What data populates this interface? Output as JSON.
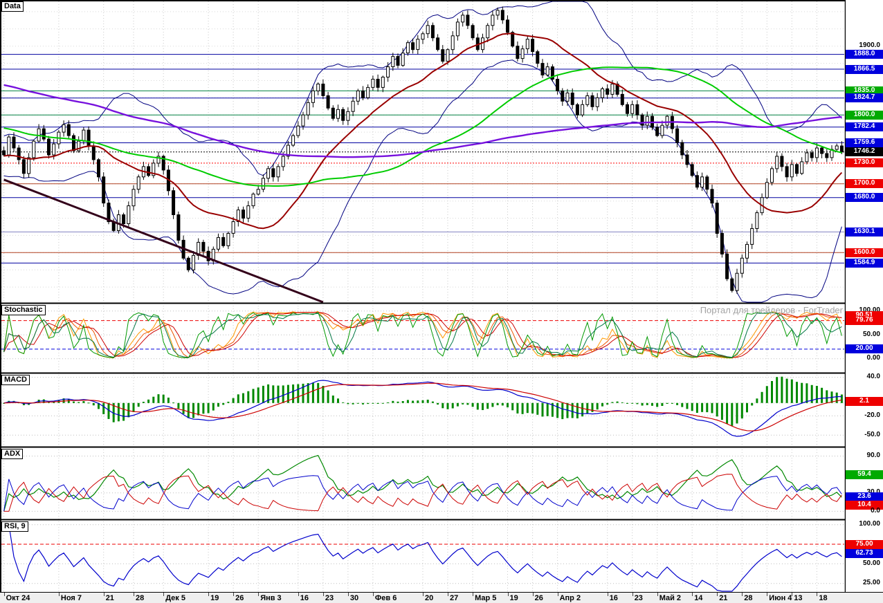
{
  "panels": {
    "main": {
      "label": "Data"
    },
    "stochastic": {
      "label": "Stochastic"
    },
    "macd": {
      "label": "MACD"
    },
    "adx": {
      "label": "ADX"
    },
    "rsi": {
      "label": "RSI, 9"
    }
  },
  "watermark": "Портал для трейдеров - ForTrader",
  "colors": {
    "badge_blue": "#0000dd",
    "badge_red": "#ee0000",
    "badge_green": "#00aa00",
    "badge_black": "#000000",
    "ma_fast": "#990000",
    "ma_mid": "#00cc00",
    "ma_slow": "#7711dd",
    "bollinger": "#000080",
    "trendline": "#33001a",
    "grid": "#c9c9c9"
  },
  "chart_data": {
    "type": "candlestick",
    "x_tick_labels": [
      {
        "label": "Окт 24",
        "index": 0
      },
      {
        "label": "Ноя 7",
        "index": 11
      },
      {
        "label": "21",
        "index": 20
      },
      {
        "label": "28",
        "index": 26
      },
      {
        "label": "Дек 5",
        "index": 32
      },
      {
        "label": "19",
        "index": 41
      },
      {
        "label": "26",
        "index": 46
      },
      {
        "label": "Янв 3",
        "index": 51
      },
      {
        "label": "16",
        "index": 59
      },
      {
        "label": "23",
        "index": 64
      },
      {
        "label": "30",
        "index": 69
      },
      {
        "label": "Фев 6",
        "index": 74
      },
      {
        "label": "20",
        "index": 84
      },
      {
        "label": "27",
        "index": 89
      },
      {
        "label": "Мар 5",
        "index": 94
      },
      {
        "label": "19",
        "index": 101
      },
      {
        "label": "26",
        "index": 106
      },
      {
        "label": "Апр 2",
        "index": 111
      },
      {
        "label": "16",
        "index": 121
      },
      {
        "label": "23",
        "index": 126
      },
      {
        "label": "Май 2",
        "index": 131
      },
      {
        "label": "14",
        "index": 138
      },
      {
        "label": "21",
        "index": 143
      },
      {
        "label": "28",
        "index": 148
      },
      {
        "label": "Июн 4",
        "index": 153
      },
      {
        "label": "13",
        "index": 158
      },
      {
        "label": "18",
        "index": 163
      }
    ],
    "close": [
      1742,
      1768,
      1752,
      1735,
      1715,
      1738,
      1762,
      1780,
      1765,
      1742,
      1758,
      1775,
      1786,
      1770,
      1748,
      1762,
      1778,
      1755,
      1735,
      1710,
      1672,
      1645,
      1632,
      1655,
      1642,
      1668,
      1692,
      1710,
      1725,
      1712,
      1730,
      1740,
      1720,
      1690,
      1655,
      1618,
      1592,
      1575,
      1596,
      1615,
      1602,
      1588,
      1605,
      1622,
      1610,
      1628,
      1645,
      1662,
      1650,
      1668,
      1685,
      1692,
      1708,
      1722,
      1710,
      1725,
      1740,
      1756,
      1770,
      1784,
      1800,
      1818,
      1835,
      1845,
      1828,
      1810,
      1795,
      1808,
      1792,
      1805,
      1820,
      1835,
      1825,
      1840,
      1852,
      1840,
      1855,
      1870,
      1885,
      1872,
      1890,
      1905,
      1895,
      1910,
      1918,
      1930,
      1912,
      1895,
      1878,
      1895,
      1915,
      1935,
      1945,
      1930,
      1912,
      1895,
      1912,
      1930,
      1945,
      1952,
      1938,
      1920,
      1900,
      1882,
      1896,
      1910,
      1892,
      1875,
      1858,
      1870,
      1852,
      1835,
      1820,
      1832,
      1815,
      1800,
      1815,
      1828,
      1812,
      1825,
      1838,
      1830,
      1845,
      1830,
      1815,
      1802,
      1815,
      1800,
      1785,
      1798,
      1782,
      1770,
      1785,
      1798,
      1780,
      1760,
      1742,
      1728,
      1712,
      1695,
      1710,
      1692,
      1672,
      1628,
      1598,
      1562,
      1545,
      1570,
      1592,
      1612,
      1635,
      1658,
      1680,
      1702,
      1722,
      1740,
      1725,
      1710,
      1728,
      1715,
      1732,
      1745,
      1738,
      1752,
      1744,
      1738,
      1750,
      1755,
      1746.2
    ],
    "ylim": [
      1528,
      1965
    ],
    "last_price": 1746.2,
    "trendline": {
      "i1": 0,
      "p1": 1706,
      "i2": 64,
      "p2": 1528
    },
    "price_levels": [
      {
        "v": 1888.0,
        "color": "#0000a0",
        "dash": null
      },
      {
        "v": 1866.5,
        "color": "#0000a0",
        "dash": null
      },
      {
        "v": 1835.0,
        "color": "#008040",
        "dash": null
      },
      {
        "v": 1824.7,
        "color": "#0000a0",
        "dash": null
      },
      {
        "v": 1800.0,
        "color": "#008040",
        "dash": null
      },
      {
        "v": 1782.4,
        "color": "#0000a0",
        "dash": null
      },
      {
        "v": 1759.6,
        "color": "#0000a0",
        "dash": null
      },
      {
        "v": 1746.2,
        "color": "#000000",
        "dash": "2,2"
      },
      {
        "v": 1730.0,
        "color": "#ff0000",
        "dash": "2,2"
      },
      {
        "v": 1700.0,
        "color": "#b04020",
        "dash": null
      },
      {
        "v": 1680.0,
        "color": "#0000a0",
        "dash": null
      },
      {
        "v": 1630.1,
        "color": "#8080c0",
        "dash": null
      },
      {
        "v": 1600.0,
        "color": "#b04020",
        "dash": null
      },
      {
        "v": 1584.9,
        "color": "#0000a0",
        "dash": null
      }
    ],
    "scale": {
      "main": [
        {
          "text": "1900.0",
          "v": 1900.0,
          "badge": null
        },
        {
          "text": "1888.0",
          "v": 1888.0,
          "badge": "blue"
        },
        {
          "text": "1866.5",
          "v": 1866.5,
          "badge": "blue"
        },
        {
          "text": "1835.0",
          "v": 1835.0,
          "badge": "green"
        },
        {
          "text": "1824.7",
          "v": 1824.7,
          "badge": "blue"
        },
        {
          "text": "1800.0",
          "v": 1800.0,
          "badge": "green"
        },
        {
          "text": "1782.4",
          "v": 1782.4,
          "badge": "blue"
        },
        {
          "text": "1759.6",
          "v": 1759.6,
          "badge": "blue"
        },
        {
          "text": "1746.2",
          "v": 1746.2,
          "badge": "black"
        },
        {
          "text": "1730.0",
          "v": 1730.0,
          "badge": "red"
        },
        {
          "text": "1700.0",
          "v": 1700.0,
          "badge": "red"
        },
        {
          "text": "1680.0",
          "v": 1680.0,
          "badge": "blue"
        },
        {
          "text": "1630.1",
          "v": 1630.1,
          "badge": "blue"
        },
        {
          "text": "1600.0",
          "v": 1600.0,
          "badge": "red"
        },
        {
          "text": "1584.9",
          "v": 1584.9,
          "badge": "blue"
        }
      ],
      "stochastic": [
        {
          "text": "100.00",
          "v": 100,
          "badge": null
        },
        {
          "text": "90.51",
          "v": 90.51,
          "badge": "red"
        },
        {
          "text": "79.76",
          "v": 79.76,
          "badge": "red"
        },
        {
          "text": "50.00",
          "v": 50,
          "badge": null
        },
        {
          "text": "20.00",
          "v": 20,
          "badge": "blue"
        },
        {
          "text": "0.00",
          "v": 0,
          "badge": null
        }
      ],
      "macd": [
        {
          "text": "40.0",
          "v": 40,
          "badge": null
        },
        {
          "text": "2.1",
          "v": 2.1,
          "badge": "red"
        },
        {
          "text": "-20.0",
          "v": -20,
          "badge": null
        },
        {
          "text": "-50.0",
          "v": -50,
          "badge": null
        }
      ],
      "adx": [
        {
          "text": "90.0",
          "v": 90,
          "badge": null
        },
        {
          "text": "59.4",
          "v": 59.4,
          "badge": "green"
        },
        {
          "text": "30.0",
          "v": 30,
          "badge": null
        },
        {
          "text": "23.6",
          "v": 23.6,
          "badge": "blue"
        },
        {
          "text": "10.4",
          "v": 10.4,
          "badge": "red"
        },
        {
          "text": "0.0",
          "v": 0,
          "badge": null
        }
      ],
      "rsi": [
        {
          "text": "100.00",
          "v": 100,
          "badge": null
        },
        {
          "text": "75.00",
          "v": 75,
          "badge": "red"
        },
        {
          "text": "62.73",
          "v": 62.73,
          "badge": "blue"
        },
        {
          "text": "50.00",
          "v": 50,
          "badge": null
        },
        {
          "text": "25.00",
          "v": 25,
          "badge": null
        }
      ]
    },
    "indicators": {
      "stochastic": {
        "ylim": [
          -28,
          114
        ],
        "grid": [
          100,
          50,
          0
        ],
        "refs": [
          {
            "v": 79.76,
            "color": "#ee0000",
            "dash": "5,3"
          },
          {
            "v": 20,
            "color": "#0000dd",
            "dash": "5,3"
          }
        ]
      },
      "macd": {
        "ylim": [
          -67,
          45
        ],
        "grid": [
          40,
          0,
          -20,
          -50
        ],
        "refs": []
      },
      "adx": {
        "ylim": [
          -12,
          103
        ],
        "grid": [
          90,
          30,
          0
        ],
        "refs": []
      },
      "rsi": {
        "period": 9,
        "ylim": [
          15,
          105
        ],
        "grid": [
          100,
          50,
          25
        ],
        "refs": [
          {
            "v": 75,
            "color": "#ee0000",
            "dash": "5,3"
          }
        ]
      }
    }
  }
}
